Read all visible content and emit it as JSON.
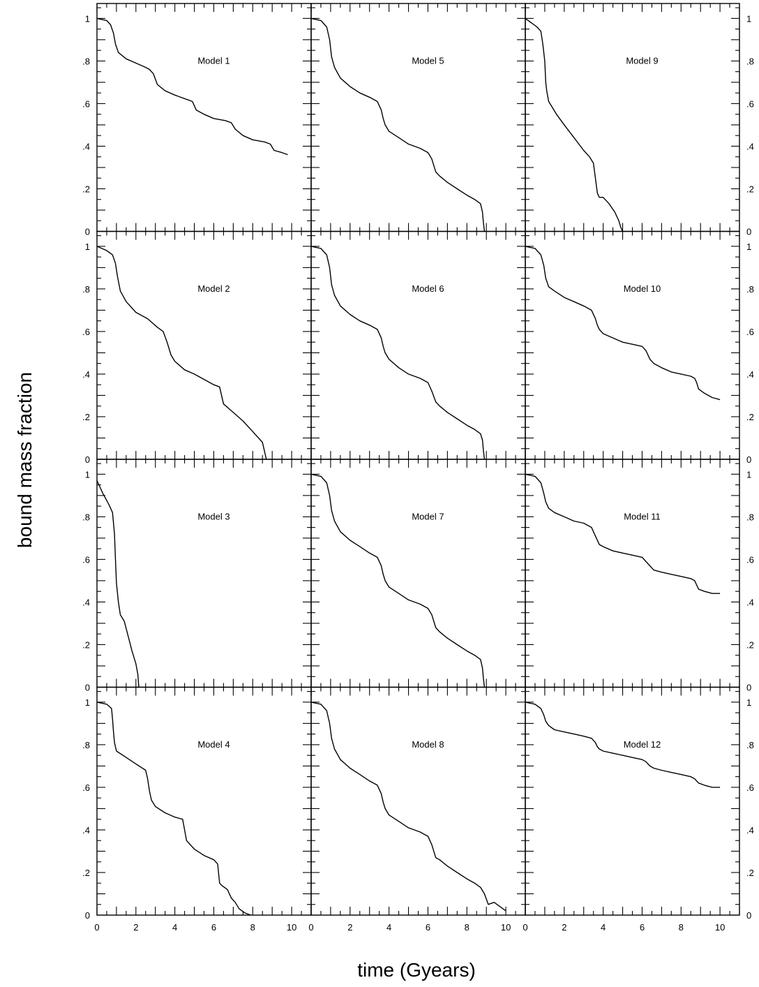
{
  "figure": {
    "xlabel": "time (Gyears)",
    "ylabel": "bound mass fraction"
  },
  "chart_data": {
    "type": "line",
    "layout": {
      "rows": 4,
      "cols": 3
    },
    "xlim": [
      0,
      11
    ],
    "ylim": [
      0,
      1.07
    ],
    "x_ticks": [
      0,
      2,
      4,
      6,
      8,
      10
    ],
    "x_tick_labels": [
      "0",
      "2",
      "4",
      "6",
      "8",
      "10"
    ],
    "y_ticks": [
      0,
      0.2,
      0.4,
      0.6,
      0.8,
      1
    ],
    "y_tick_labels": [
      "0",
      ".2",
      ".4",
      ".6",
      ".8",
      "1"
    ],
    "grid": false,
    "panels": [
      {
        "label": "Model 1",
        "row": 0,
        "col": 0,
        "x": [
          0,
          0.5,
          0.7,
          0.85,
          0.95,
          1.1,
          1.5,
          2,
          2.5,
          2.7,
          2.9,
          3.1,
          3.5,
          4,
          4.6,
          4.9,
          5.1,
          5.5,
          6,
          6.6,
          6.9,
          7.1,
          7.5,
          8,
          8.6,
          8.9,
          9.1,
          9.5,
          9.8
        ],
        "y": [
          1,
          0.99,
          0.97,
          0.93,
          0.88,
          0.84,
          0.81,
          0.79,
          0.77,
          0.76,
          0.74,
          0.69,
          0.66,
          0.64,
          0.62,
          0.61,
          0.57,
          0.55,
          0.53,
          0.52,
          0.51,
          0.48,
          0.45,
          0.43,
          0.42,
          0.41,
          0.38,
          0.37,
          0.36
        ]
      },
      {
        "label": "Model 2",
        "row": 1,
        "col": 0,
        "x": [
          0,
          0.5,
          0.8,
          0.95,
          1.05,
          1.2,
          1.5,
          2,
          2.6,
          3.1,
          3.4,
          3.6,
          3.8,
          4,
          4.5,
          5,
          5.6,
          6,
          6.3,
          6.5,
          7,
          7.5,
          8,
          8.3,
          8.5,
          8.6,
          8.7
        ],
        "y": [
          1,
          0.98,
          0.96,
          0.92,
          0.86,
          0.79,
          0.74,
          0.69,
          0.66,
          0.62,
          0.6,
          0.55,
          0.49,
          0.46,
          0.42,
          0.4,
          0.37,
          0.35,
          0.34,
          0.26,
          0.22,
          0.18,
          0.13,
          0.1,
          0.08,
          0.04,
          0
        ]
      },
      {
        "label": "Model 3",
        "row": 2,
        "col": 0,
        "x": [
          0,
          0.3,
          0.6,
          0.8,
          0.9,
          0.95,
          1,
          1.1,
          1.2,
          1.4,
          1.6,
          1.8,
          2,
          2.1,
          2.15
        ],
        "y": [
          0.97,
          0.91,
          0.86,
          0.82,
          0.72,
          0.6,
          0.49,
          0.4,
          0.34,
          0.31,
          0.24,
          0.17,
          0.11,
          0.06,
          0
        ]
      },
      {
        "label": "Model 4",
        "row": 3,
        "col": 0,
        "x": [
          0,
          0.5,
          0.75,
          0.8,
          0.85,
          0.9,
          1,
          1.5,
          2,
          2.5,
          2.6,
          2.7,
          2.8,
          3,
          3.5,
          4,
          4.4,
          4.5,
          4.6,
          5,
          5.5,
          6,
          6.2,
          6.3,
          6.4,
          6.7,
          6.9,
          7.1,
          7.3,
          7.6,
          7.9
        ],
        "y": [
          1,
          0.99,
          0.97,
          0.92,
          0.86,
          0.81,
          0.77,
          0.74,
          0.71,
          0.68,
          0.64,
          0.58,
          0.54,
          0.51,
          0.48,
          0.46,
          0.45,
          0.4,
          0.35,
          0.31,
          0.28,
          0.26,
          0.24,
          0.15,
          0.14,
          0.12,
          0.08,
          0.06,
          0.03,
          0.01,
          0
        ]
      },
      {
        "label": "Model 5",
        "row": 0,
        "col": 1,
        "x": [
          0,
          0.5,
          0.8,
          0.95,
          1.05,
          1.2,
          1.5,
          2,
          2.5,
          3,
          3.4,
          3.6,
          3.7,
          3.8,
          4,
          4.5,
          5,
          5.6,
          6,
          6.2,
          6.4,
          6.6,
          7,
          7.5,
          8,
          8.4,
          8.7,
          8.8,
          8.85,
          8.9
        ],
        "y": [
          1,
          0.99,
          0.96,
          0.9,
          0.82,
          0.77,
          0.72,
          0.68,
          0.65,
          0.63,
          0.61,
          0.57,
          0.53,
          0.5,
          0.47,
          0.44,
          0.41,
          0.39,
          0.37,
          0.34,
          0.28,
          0.26,
          0.23,
          0.2,
          0.17,
          0.15,
          0.13,
          0.09,
          0.04,
          0
        ]
      },
      {
        "label": "Model 6",
        "row": 1,
        "col": 1,
        "x": [
          0,
          0.5,
          0.8,
          0.95,
          1.05,
          1.2,
          1.5,
          2,
          2.5,
          3,
          3.4,
          3.6,
          3.7,
          3.8,
          4,
          4.5,
          5,
          5.6,
          6,
          6.2,
          6.4,
          6.6,
          7,
          7.5,
          8,
          8.4,
          8.7,
          8.8,
          8.85,
          8.9
        ],
        "y": [
          1,
          0.99,
          0.96,
          0.9,
          0.82,
          0.77,
          0.72,
          0.68,
          0.65,
          0.63,
          0.61,
          0.57,
          0.53,
          0.5,
          0.47,
          0.43,
          0.4,
          0.38,
          0.36,
          0.32,
          0.27,
          0.25,
          0.22,
          0.19,
          0.16,
          0.14,
          0.12,
          0.09,
          0.04,
          0
        ]
      },
      {
        "label": "Model 7",
        "row": 2,
        "col": 1,
        "x": [
          0,
          0.5,
          0.8,
          0.95,
          1.05,
          1.2,
          1.5,
          2,
          2.5,
          3,
          3.4,
          3.6,
          3.7,
          3.8,
          4,
          4.5,
          5,
          5.6,
          6,
          6.2,
          6.4,
          6.6,
          7,
          7.5,
          8,
          8.4,
          8.7,
          8.8,
          8.85,
          8.9
        ],
        "y": [
          1,
          0.99,
          0.96,
          0.9,
          0.83,
          0.78,
          0.73,
          0.69,
          0.66,
          0.63,
          0.61,
          0.57,
          0.53,
          0.5,
          0.47,
          0.44,
          0.41,
          0.39,
          0.37,
          0.34,
          0.28,
          0.26,
          0.23,
          0.2,
          0.17,
          0.15,
          0.13,
          0.09,
          0.04,
          0
        ]
      },
      {
        "label": "Model 8",
        "row": 3,
        "col": 1,
        "x": [
          0,
          0.5,
          0.8,
          0.95,
          1.05,
          1.2,
          1.5,
          2,
          2.5,
          3,
          3.4,
          3.6,
          3.7,
          3.8,
          4,
          4.5,
          5,
          5.6,
          6,
          6.2,
          6.4,
          6.6,
          7,
          7.5,
          8,
          8.4,
          8.7,
          8.9,
          9.1,
          9.4,
          9.7,
          10
        ],
        "y": [
          1,
          0.99,
          0.96,
          0.9,
          0.83,
          0.78,
          0.73,
          0.69,
          0.66,
          0.63,
          0.61,
          0.57,
          0.53,
          0.5,
          0.47,
          0.44,
          0.41,
          0.39,
          0.37,
          0.33,
          0.27,
          0.26,
          0.23,
          0.2,
          0.17,
          0.15,
          0.13,
          0.1,
          0.05,
          0.06,
          0.04,
          0.02
        ]
      },
      {
        "label": "Model 9",
        "row": 0,
        "col": 2,
        "x": [
          0,
          0.3,
          0.6,
          0.8,
          0.9,
          1,
          1.05,
          1.1,
          1.2,
          1.4,
          1.6,
          2,
          2.5,
          3,
          3.3,
          3.5,
          3.6,
          3.7,
          3.8,
          3.9,
          4,
          4.3,
          4.6,
          4.8,
          4.9,
          5
        ],
        "y": [
          1,
          0.98,
          0.96,
          0.94,
          0.88,
          0.8,
          0.7,
          0.66,
          0.61,
          0.58,
          0.55,
          0.5,
          0.44,
          0.38,
          0.35,
          0.32,
          0.25,
          0.18,
          0.16,
          0.16,
          0.16,
          0.13,
          0.09,
          0.05,
          0.02,
          0
        ]
      },
      {
        "label": "Model 10",
        "row": 1,
        "col": 2,
        "x": [
          0,
          0.5,
          0.8,
          0.95,
          1.05,
          1.2,
          1.5,
          2,
          2.5,
          3,
          3.4,
          3.6,
          3.7,
          3.8,
          4,
          4.5,
          5,
          5.5,
          6,
          6.2,
          6.4,
          6.6,
          7,
          7.5,
          8,
          8.5,
          8.7,
          8.8,
          8.9,
          9.2,
          9.6,
          10
        ],
        "y": [
          1,
          0.99,
          0.96,
          0.91,
          0.85,
          0.81,
          0.79,
          0.76,
          0.74,
          0.72,
          0.7,
          0.66,
          0.63,
          0.61,
          0.59,
          0.57,
          0.55,
          0.54,
          0.53,
          0.51,
          0.47,
          0.45,
          0.43,
          0.41,
          0.4,
          0.39,
          0.38,
          0.36,
          0.33,
          0.31,
          0.29,
          0.28
        ]
      },
      {
        "label": "Model 11",
        "row": 2,
        "col": 2,
        "x": [
          0,
          0.5,
          0.8,
          0.95,
          1.05,
          1.2,
          1.5,
          2,
          2.5,
          3,
          3.4,
          3.6,
          3.7,
          3.8,
          4,
          4.5,
          5,
          5.5,
          6,
          6.2,
          6.4,
          6.6,
          7,
          7.5,
          8,
          8.5,
          8.7,
          8.8,
          8.9,
          9.2,
          9.6,
          10
        ],
        "y": [
          1,
          0.99,
          0.96,
          0.91,
          0.87,
          0.84,
          0.82,
          0.8,
          0.78,
          0.77,
          0.75,
          0.71,
          0.69,
          0.67,
          0.66,
          0.64,
          0.63,
          0.62,
          0.61,
          0.59,
          0.57,
          0.55,
          0.54,
          0.53,
          0.52,
          0.51,
          0.5,
          0.48,
          0.46,
          0.45,
          0.44,
          0.44
        ]
      },
      {
        "label": "Model 12",
        "row": 3,
        "col": 2,
        "x": [
          0,
          0.5,
          0.8,
          0.95,
          1.05,
          1.2,
          1.5,
          2,
          2.5,
          3,
          3.4,
          3.6,
          3.7,
          3.8,
          4,
          4.5,
          5,
          5.5,
          6,
          6.2,
          6.4,
          6.6,
          7,
          7.5,
          8,
          8.5,
          8.7,
          8.8,
          8.9,
          9.2,
          9.6,
          10
        ],
        "y": [
          1,
          0.99,
          0.97,
          0.94,
          0.91,
          0.89,
          0.87,
          0.86,
          0.85,
          0.84,
          0.83,
          0.81,
          0.79,
          0.78,
          0.77,
          0.76,
          0.75,
          0.74,
          0.73,
          0.72,
          0.7,
          0.69,
          0.68,
          0.67,
          0.66,
          0.65,
          0.64,
          0.63,
          0.62,
          0.61,
          0.6,
          0.6
        ]
      }
    ]
  }
}
